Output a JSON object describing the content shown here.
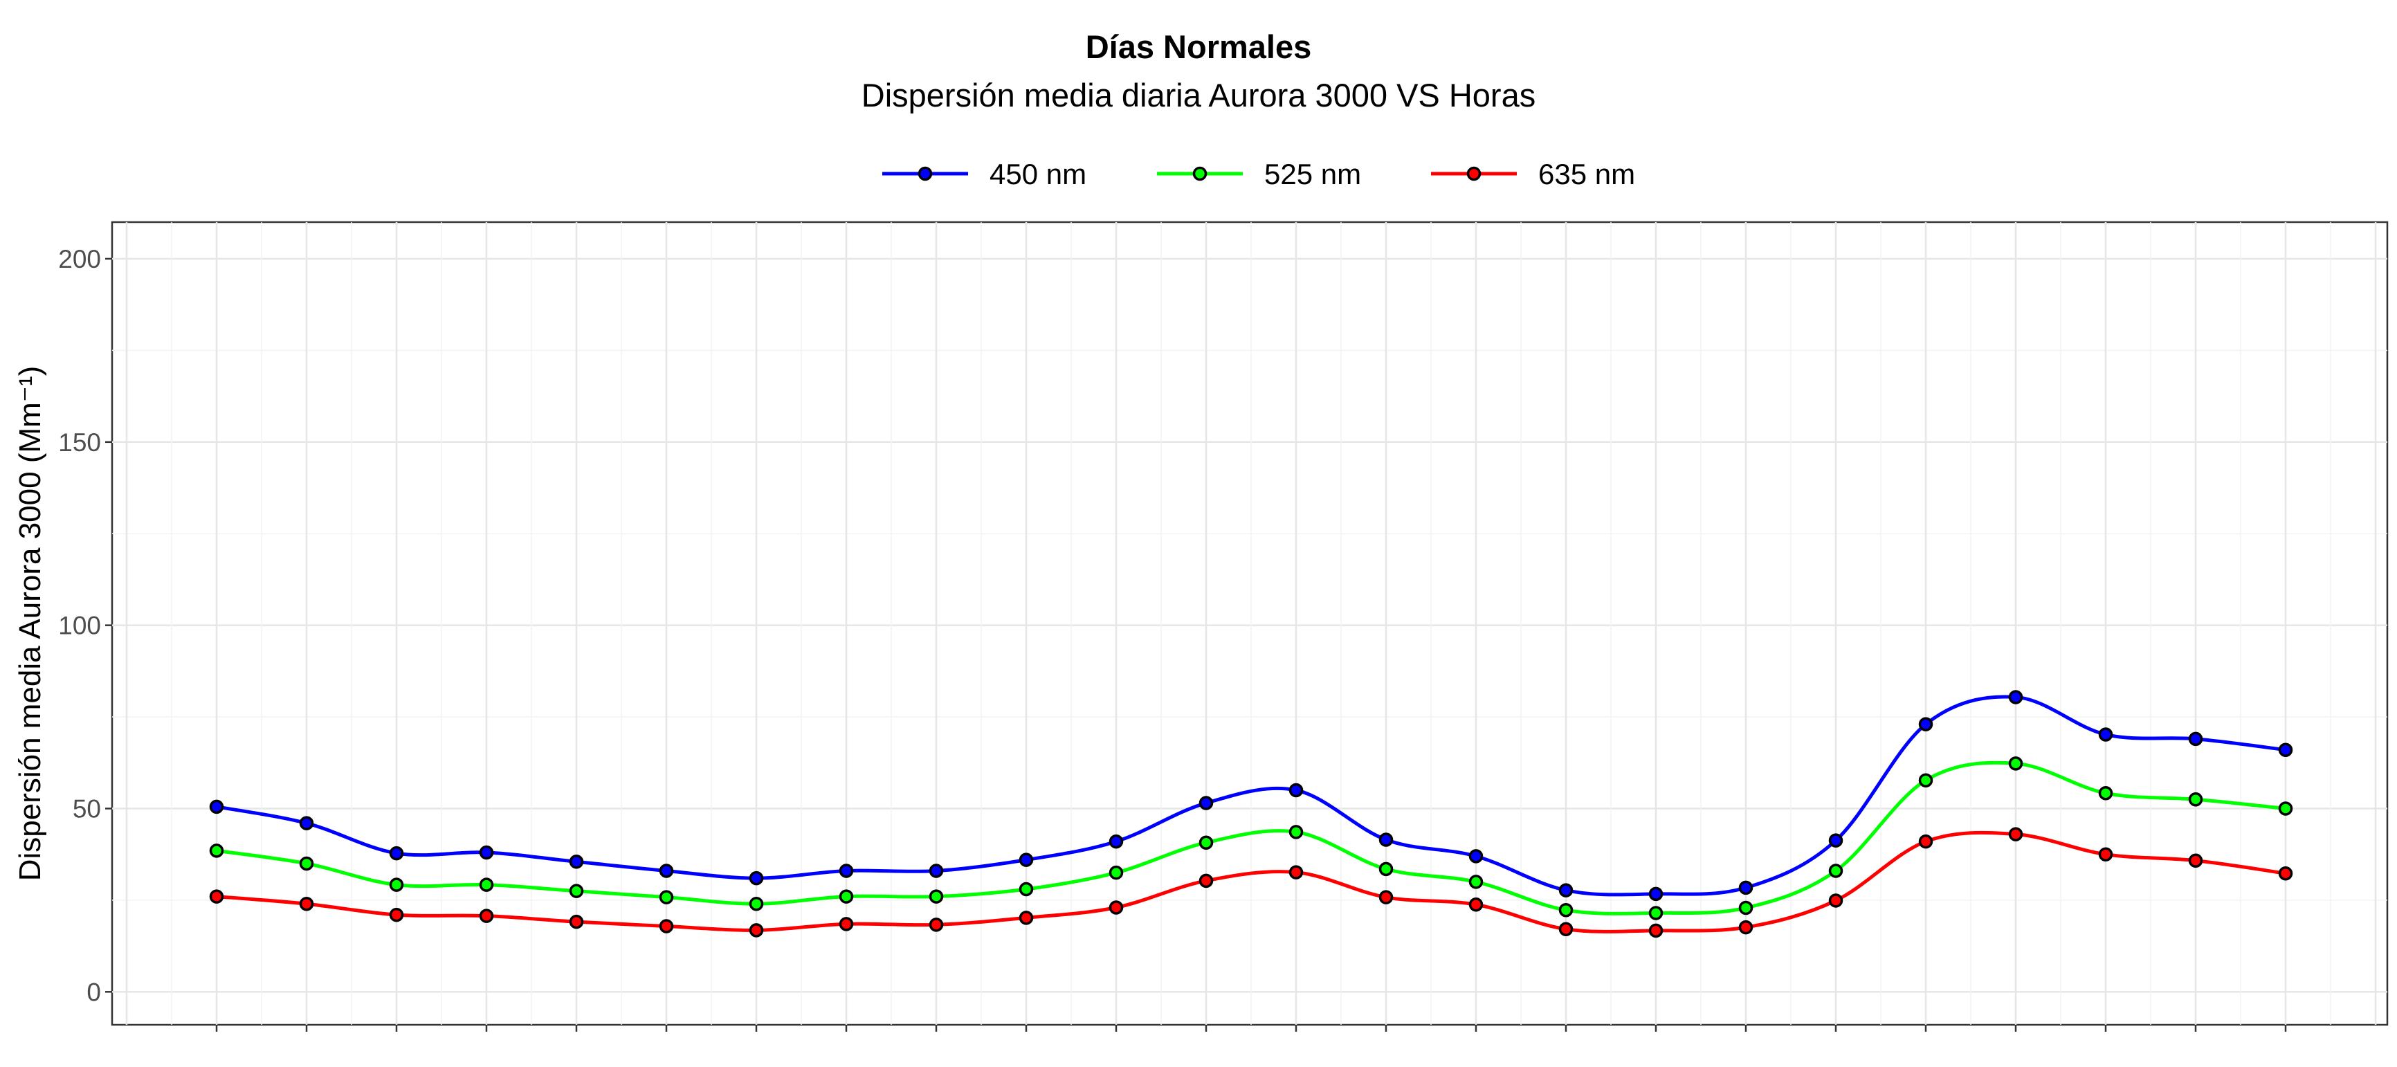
{
  "chart_data": {
    "type": "line",
    "title": "Días Normales",
    "subtitle": "Dispersión media diaria Aurora 3000 VS Horas",
    "xlabel": "",
    "ylabel": "Dispersión media Aurora 3000 (Mm⁻¹)",
    "x": [
      0,
      1,
      2,
      3,
      4,
      5,
      6,
      7,
      8,
      9,
      10,
      11,
      12,
      13,
      14,
      15,
      16,
      17,
      18,
      19,
      20,
      21,
      22,
      23
    ],
    "ylim": [
      -9,
      210
    ],
    "yticks": [
      0,
      50,
      100,
      150,
      200
    ],
    "grid": true,
    "legend_position": "top",
    "series": [
      {
        "name": "450 nm",
        "color": "#0000ff",
        "values": [
          50.5,
          46,
          37.8,
          38,
          35.5,
          33,
          31,
          33,
          33,
          36,
          41,
          51.5,
          55,
          41.5,
          37,
          27.7,
          26.7,
          28.4,
          41.3,
          73,
          80.4,
          70.2,
          69,
          66
        ]
      },
      {
        "name": "525 nm",
        "color": "#00ff00",
        "values": [
          38.5,
          35,
          29.2,
          29.2,
          27.5,
          25.8,
          24,
          26,
          26,
          28,
          32.5,
          40.7,
          43.6,
          33.5,
          30,
          22.3,
          21.5,
          22.9,
          33,
          57.7,
          62.3,
          54.2,
          52.5,
          50
        ]
      },
      {
        "name": "635 nm",
        "color": "#ff0000",
        "values": [
          26,
          24,
          21,
          20.7,
          19.1,
          17.9,
          16.8,
          18.5,
          18.3,
          20.2,
          23,
          30.3,
          32.6,
          25.8,
          23.8,
          17.1,
          16.7,
          17.6,
          24.9,
          41,
          43,
          37.5,
          35.8,
          32.3
        ]
      }
    ]
  }
}
